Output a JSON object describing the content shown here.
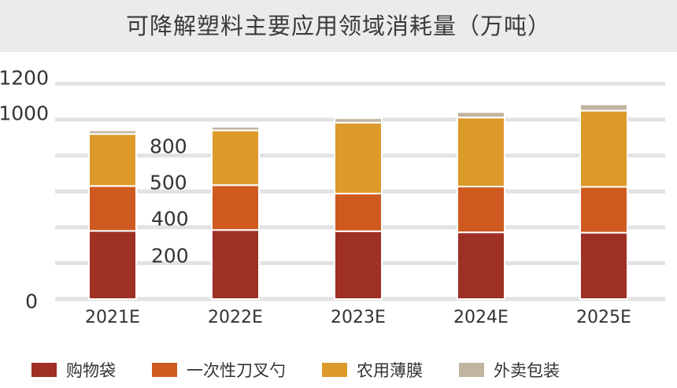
{
  "chart_data": {
    "type": "bar",
    "stacked": true,
    "title": "可降解塑料主要应用领域消耗量（万吨）",
    "categories": [
      "2021E",
      "2022E",
      "2023E",
      "2024E",
      "2025E"
    ],
    "y_ticks": [
      "0",
      "200",
      "400",
      "500",
      "800",
      "1000",
      "1200"
    ],
    "y_tick_values": [
      0,
      200,
      400,
      500,
      800,
      1000,
      1200
    ],
    "ylim": [
      0,
      1250
    ],
    "grid": true,
    "legend_position": "bottom",
    "series": [
      {
        "name": "购物袋",
        "color": "#9e3024",
        "values": [
          380,
          385,
          378,
          372,
          370
        ]
      },
      {
        "name": "一次性刀叉勺",
        "color": "#cf5a1f",
        "values": [
          250,
          250,
          210,
          255,
          255
        ]
      },
      {
        "name": "农用薄膜",
        "color": "#dc9a2b",
        "values": [
          290,
          305,
          395,
          385,
          425
        ]
      },
      {
        "name": "外卖包装",
        "color": "#c1b4a0",
        "values": [
          20,
          20,
          25,
          30,
          35
        ]
      }
    ]
  }
}
